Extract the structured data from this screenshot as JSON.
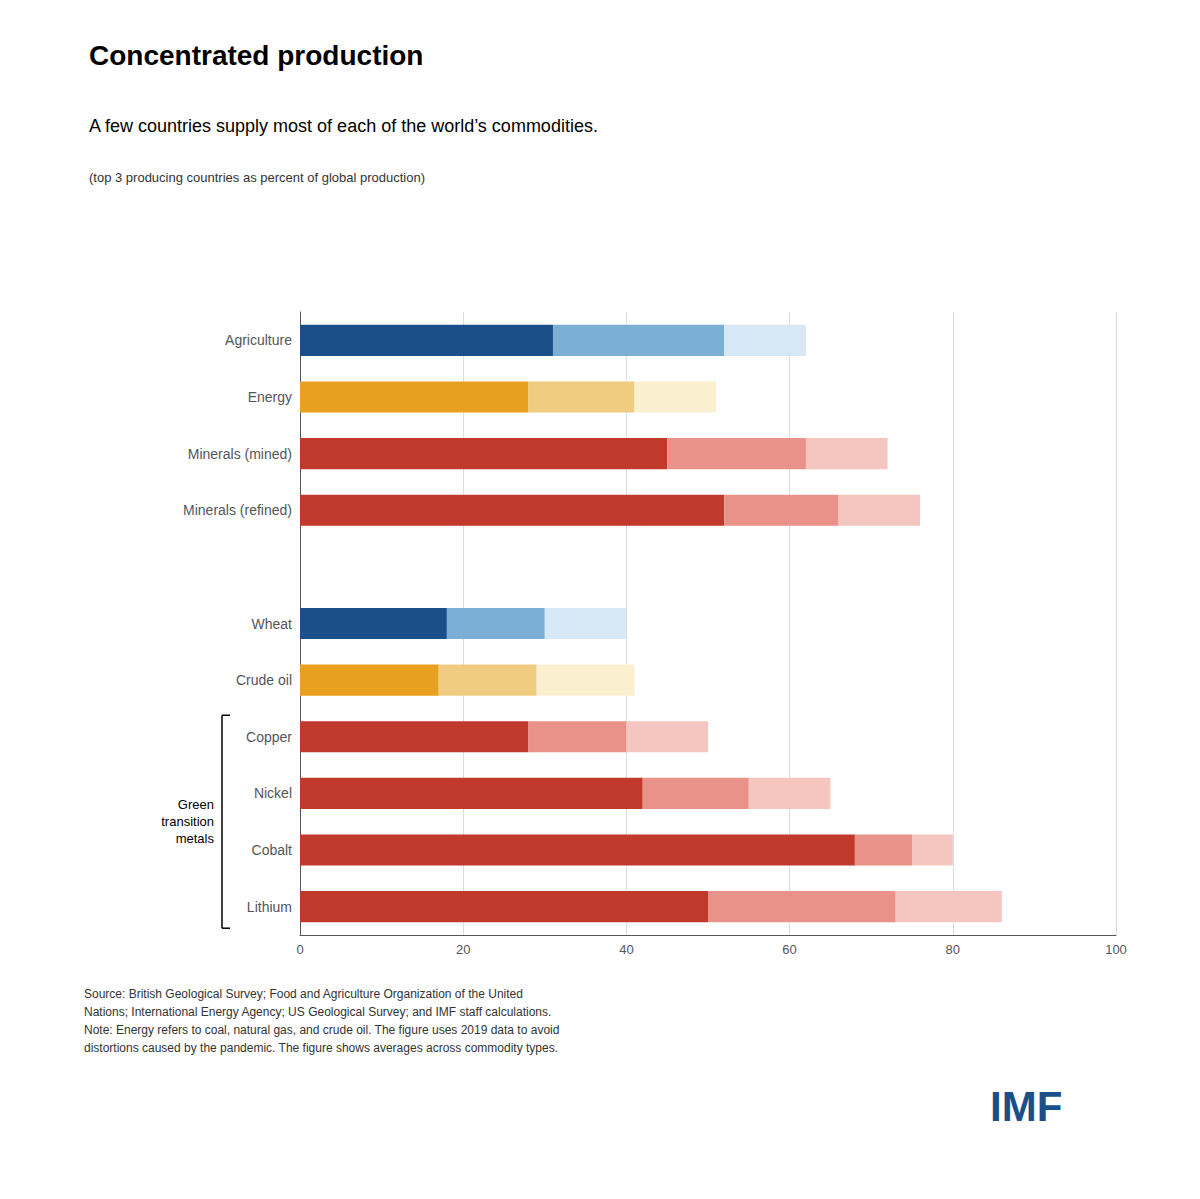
{
  "chart_data": {
    "type": "bar",
    "orientation": "horizontal",
    "stacked": true,
    "title": "Concentrated production",
    "subtitle": "A few countries supply most of each of the world’s commodities.",
    "subtitle2": "(top 3 producing countries as percent of global production)",
    "source": "Source: British Geological Survey; Food and Agriculture Organization of the United\nNations; International Energy Agency; US Geological Survey; and IMF staff calculations.\nNote: Energy refers to coal, natural gas, and crude oil. The figure uses 2019 data to avoid\ndistortions caused by the pandemic. The figure shows averages across commodity types.",
    "logo": {
      "text": "IMF",
      "color": "#1a4f8a"
    },
    "bracket": {
      "label": "Green\ntransition\nmetals",
      "from": "Copper",
      "to": "Lithium"
    },
    "categories": [
      "Agriculture",
      "Energy",
      "Minerals (mined)",
      "Minerals (refined)",
      null,
      "Wheat",
      "Crude oil",
      "Copper",
      "Nickel",
      "Cobalt",
      "Lithium"
    ],
    "series": [
      {
        "values": [
          31,
          28,
          45,
          52,
          null,
          18,
          17,
          28,
          42,
          68,
          50
        ],
        "colors": [
          "#1a4f8a",
          "#e8a020",
          "#c0392b",
          "#c0392b",
          null,
          "#1a4f8a",
          "#e8a020",
          "#c0392b",
          "#c0392b",
          "#c0392b",
          "#c0392b"
        ]
      },
      {
        "values": [
          21,
          13,
          17,
          14,
          null,
          12,
          12,
          12,
          13,
          7,
          23
        ],
        "colors": [
          "#7bafd4",
          "#f0cc80",
          "#e8928a",
          "#e8928a",
          null,
          "#7bafd4",
          "#f0cc80",
          "#e8928a",
          "#e8928a",
          "#e8928a",
          "#e8928a"
        ]
      },
      {
        "values": [
          10,
          10,
          10,
          10,
          null,
          10,
          12,
          10,
          10,
          5,
          13
        ],
        "colors": [
          "#d6e8f5",
          "#faf0d0",
          "#f5c5c0",
          "#f5c5c0",
          null,
          "#d6e8f5",
          "#faf0d0",
          "#f5c5c0",
          "#f5c5c0",
          "#f5c5c0",
          "#f5c5c0"
        ]
      }
    ],
    "xlim": [
      0,
      100
    ],
    "xticks": [
      0,
      20,
      40,
      60,
      80,
      100
    ],
    "grid": true
  }
}
